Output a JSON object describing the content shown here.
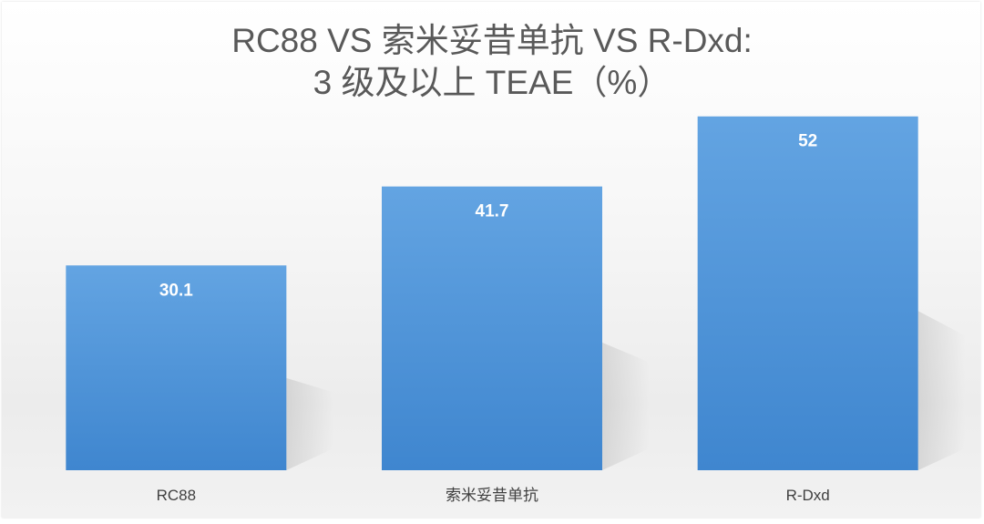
{
  "chart_data": {
    "type": "bar",
    "title": "RC88 VS 索米妥昔单抗 VS R-Dxd:",
    "subtitle": "3 级及以上 TEAE（%）",
    "categories": [
      "RC88",
      "索米妥昔单抗",
      "R-Dxd"
    ],
    "series": [
      {
        "values": [
          30.1,
          41.7,
          52
        ],
        "data_labels": [
          "30.1",
          "41.7",
          "52"
        ]
      }
    ],
    "xlabel": "",
    "ylabel": "",
    "ylim": [
      0,
      60
    ],
    "grid": false,
    "legend": "none",
    "bar_color": "#4a90d6",
    "bar_color_light": "#5ea0e0",
    "label_color": "#ffffff"
  }
}
